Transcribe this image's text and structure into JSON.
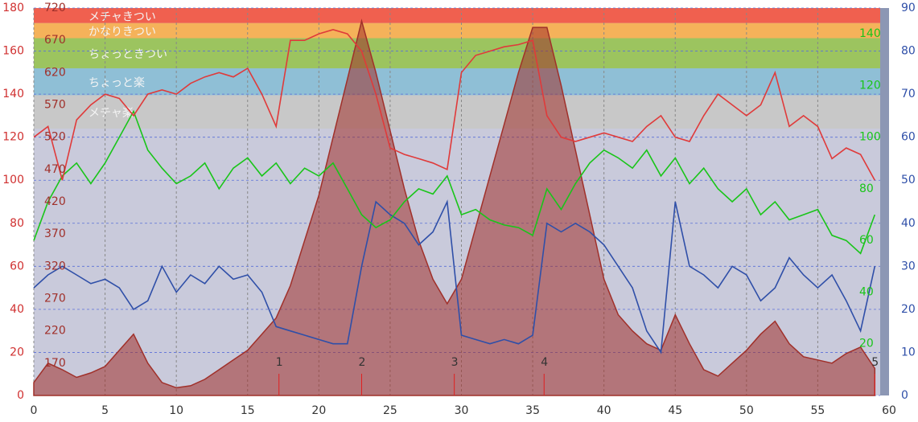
{
  "chart_data": {
    "type": "line",
    "x": [
      0,
      1,
      2,
      3,
      4,
      5,
      6,
      7,
      8,
      9,
      10,
      11,
      12,
      13,
      14,
      15,
      16,
      17,
      18,
      19,
      20,
      21,
      22,
      23,
      24,
      25,
      26,
      27,
      28,
      29,
      30,
      31,
      32,
      33,
      34,
      35,
      36,
      37,
      38,
      39,
      40,
      41,
      42,
      43,
      44,
      45,
      46,
      47,
      48,
      49,
      50,
      51,
      52,
      53,
      54,
      55,
      56,
      57,
      58,
      59
    ],
    "xlim": [
      0,
      60
    ],
    "xticks": [
      0,
      5,
      10,
      15,
      20,
      25,
      30,
      35,
      40,
      45,
      50,
      55,
      60
    ],
    "ylim": [
      0,
      180
    ],
    "yticks": [
      0,
      20,
      40,
      60,
      80,
      100,
      120,
      140,
      160,
      180
    ],
    "y2lim": [
      120,
      720
    ],
    "y2ticks": [
      170,
      220,
      270,
      320,
      370,
      420,
      470,
      520,
      570,
      620,
      670,
      720
    ],
    "y3lim": [
      0,
      150
    ],
    "y3ticks": [
      20,
      40,
      60,
      80,
      100,
      120,
      140
    ],
    "y4lim": [
      0,
      90
    ],
    "y4ticks": [
      0,
      10,
      20,
      30,
      40,
      50,
      60,
      70,
      80,
      90
    ],
    "grid": true,
    "zones": [
      {
        "label": "メチャきつい",
        "from": 173,
        "to": 180,
        "color": "#f0604f"
      },
      {
        "label": "かなりきつい",
        "from": 166,
        "to": 173,
        "color": "#f5b25a"
      },
      {
        "label": "ちょっときつい",
        "from": 152,
        "to": 166,
        "color": "#9cc45f"
      },
      {
        "label": "ちょっと楽",
        "from": 139.5,
        "to": 152,
        "color": "#8fbfd6"
      },
      {
        "label": "メチャ楽",
        "from": 124,
        "to": 139.5,
        "color": "#c8c8c8"
      }
    ],
    "laps": [
      17.2,
      23,
      29.5,
      35.8,
      59
    ],
    "lap_labels": [
      "1",
      "2",
      "3",
      "4",
      "5"
    ],
    "series": [
      {
        "axis": "y2",
        "color": "#a0302a",
        "fill": true,
        "values": [
          140,
          170,
          160,
          148,
          155,
          165,
          190,
          215,
          170,
          140,
          132,
          135,
          145,
          160,
          175,
          190,
          215,
          240,
          290,
          360,
          430,
          520,
          610,
          700,
          620,
          530,
          440,
          360,
          300,
          262,
          300,
          380,
          460,
          540,
          620,
          690,
          690,
          600,
          500,
          400,
          300,
          245,
          220,
          200,
          190,
          245,
          200,
          160,
          150,
          170,
          190,
          215,
          235,
          200,
          180,
          175,
          170,
          185,
          195,
          162
        ]
      },
      {
        "axis": "y4",
        "color": "#2f4fa8",
        "values": [
          25,
          28,
          30,
          28,
          26,
          27,
          25,
          20,
          22,
          30,
          24,
          28,
          26,
          30,
          27,
          28,
          24,
          16,
          15,
          14,
          13,
          12,
          12,
          30,
          45,
          42,
          40,
          35,
          38,
          45,
          14,
          13,
          12,
          13,
          12,
          14,
          40,
          38,
          40,
          38,
          35,
          30,
          25,
          15,
          10,
          45,
          30,
          28,
          25,
          30,
          28,
          22,
          25,
          32,
          28,
          25,
          28,
          22,
          15,
          30
        ]
      },
      {
        "axis": "y3",
        "color": "#19c519",
        "values": [
          60,
          75,
          85,
          90,
          82,
          90,
          100,
          110,
          95,
          88,
          82,
          85,
          90,
          80,
          88,
          92,
          85,
          90,
          82,
          88,
          85,
          90,
          80,
          70,
          65,
          68,
          75,
          80,
          78,
          85,
          70,
          72,
          68,
          66,
          65,
          62,
          80,
          72,
          82,
          90,
          95,
          92,
          88,
          95,
          85,
          92,
          82,
          88,
          80,
          75,
          80,
          70,
          75,
          68,
          70,
          72,
          62,
          60,
          55,
          70
        ]
      },
      {
        "axis": "y",
        "color": "#e03a3a",
        "values": [
          120,
          125,
          100,
          128,
          135,
          140,
          138,
          130,
          140,
          142,
          140,
          145,
          148,
          150,
          148,
          152,
          140,
          125,
          165,
          165,
          168,
          170,
          168,
          160,
          140,
          115,
          112,
          110,
          108,
          105,
          150,
          158,
          160,
          162,
          163,
          165,
          130,
          120,
          118,
          120,
          122,
          120,
          118,
          125,
          130,
          120,
          118,
          130,
          140,
          135,
          130,
          135,
          150,
          125,
          130,
          125,
          110,
          115,
          112,
          100
        ]
      }
    ]
  }
}
